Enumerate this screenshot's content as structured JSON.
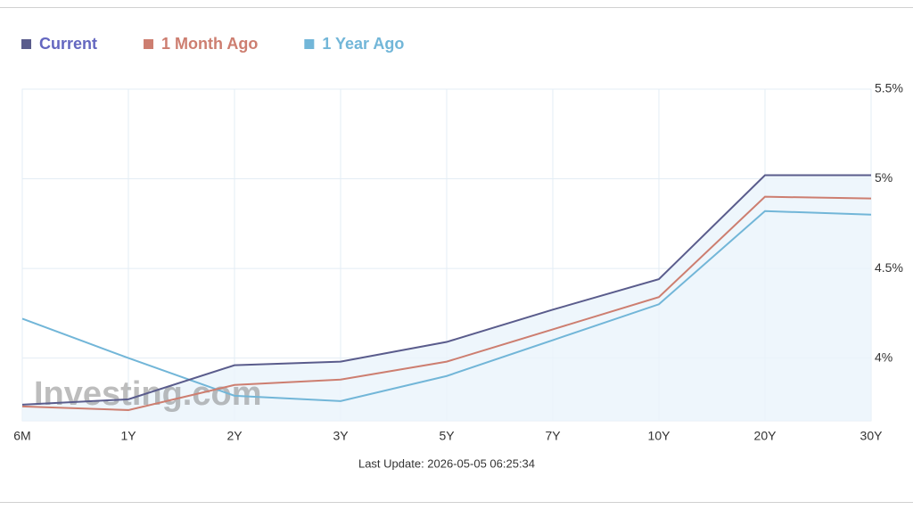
{
  "chart_data": {
    "type": "line",
    "categories": [
      "6M",
      "1Y",
      "2Y",
      "3Y",
      "5Y",
      "7Y",
      "10Y",
      "20Y",
      "30Y"
    ],
    "series": [
      {
        "name": "Current",
        "color": "#5a5c8c",
        "values": [
          3.74,
          3.77,
          3.96,
          3.98,
          4.09,
          4.27,
          4.44,
          5.02,
          5.02
        ]
      },
      {
        "name": "1 Month Ago",
        "color": "#cd7e70",
        "values": [
          3.73,
          3.71,
          3.85,
          3.88,
          3.98,
          4.16,
          4.34,
          4.9,
          4.89
        ]
      },
      {
        "name": "1 Year Ago",
        "color": "#72b6d8",
        "values": [
          4.22,
          4.0,
          3.79,
          3.76,
          3.9,
          4.1,
          4.3,
          4.82,
          4.8
        ]
      }
    ],
    "ylim": [
      3.65,
      5.5
    ],
    "yticks": [
      {
        "value": 4,
        "label": "4%"
      },
      {
        "value": 4.5,
        "label": "4.5%"
      },
      {
        "value": 5,
        "label": "5%"
      },
      {
        "value": 5.5,
        "label": "5.5%"
      }
    ],
    "grid": true,
    "legend": "top-left",
    "footer": "Last Update: 2026-05-05 06:25:34",
    "watermark": "Investing.com"
  }
}
